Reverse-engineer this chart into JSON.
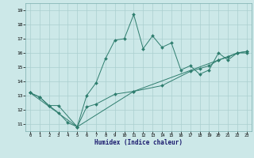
{
  "xlabel": "Humidex (Indice chaleur)",
  "background_color": "#cce8e8",
  "line_color": "#2e7d6e",
  "xlim": [
    -0.5,
    23.5
  ],
  "ylim": [
    10.5,
    19.5
  ],
  "xticks": [
    0,
    1,
    2,
    3,
    4,
    5,
    6,
    7,
    8,
    9,
    10,
    11,
    12,
    13,
    14,
    15,
    16,
    17,
    18,
    19,
    20,
    21,
    22,
    23
  ],
  "yticks": [
    11,
    12,
    13,
    14,
    15,
    16,
    17,
    18,
    19
  ],
  "series1_x": [
    0,
    1,
    2,
    3,
    4,
    5,
    6,
    7,
    8,
    9,
    10,
    11,
    12,
    13,
    14,
    15,
    16,
    17,
    18,
    19,
    20,
    21,
    22,
    23
  ],
  "series1_y": [
    13.2,
    12.9,
    12.3,
    11.8,
    11.1,
    10.8,
    13.0,
    13.9,
    15.6,
    16.9,
    17.0,
    18.7,
    16.3,
    17.2,
    16.4,
    16.7,
    14.8,
    15.1,
    14.5,
    14.8,
    16.0,
    15.5,
    16.0,
    16.0
  ],
  "series2_x": [
    0,
    1,
    2,
    3,
    5,
    6,
    7,
    9,
    11,
    14,
    17,
    18,
    19,
    20,
    21,
    22,
    23
  ],
  "series2_y": [
    13.2,
    12.9,
    12.3,
    12.3,
    10.8,
    12.2,
    12.4,
    13.1,
    13.3,
    13.7,
    14.7,
    14.9,
    15.1,
    15.5,
    15.7,
    16.0,
    16.1
  ],
  "series3_x": [
    0,
    5,
    11,
    20,
    22,
    23
  ],
  "series3_y": [
    13.2,
    10.8,
    13.3,
    15.5,
    16.0,
    16.1
  ],
  "grid_color": "#aacfcf",
  "markersize": 2.0
}
